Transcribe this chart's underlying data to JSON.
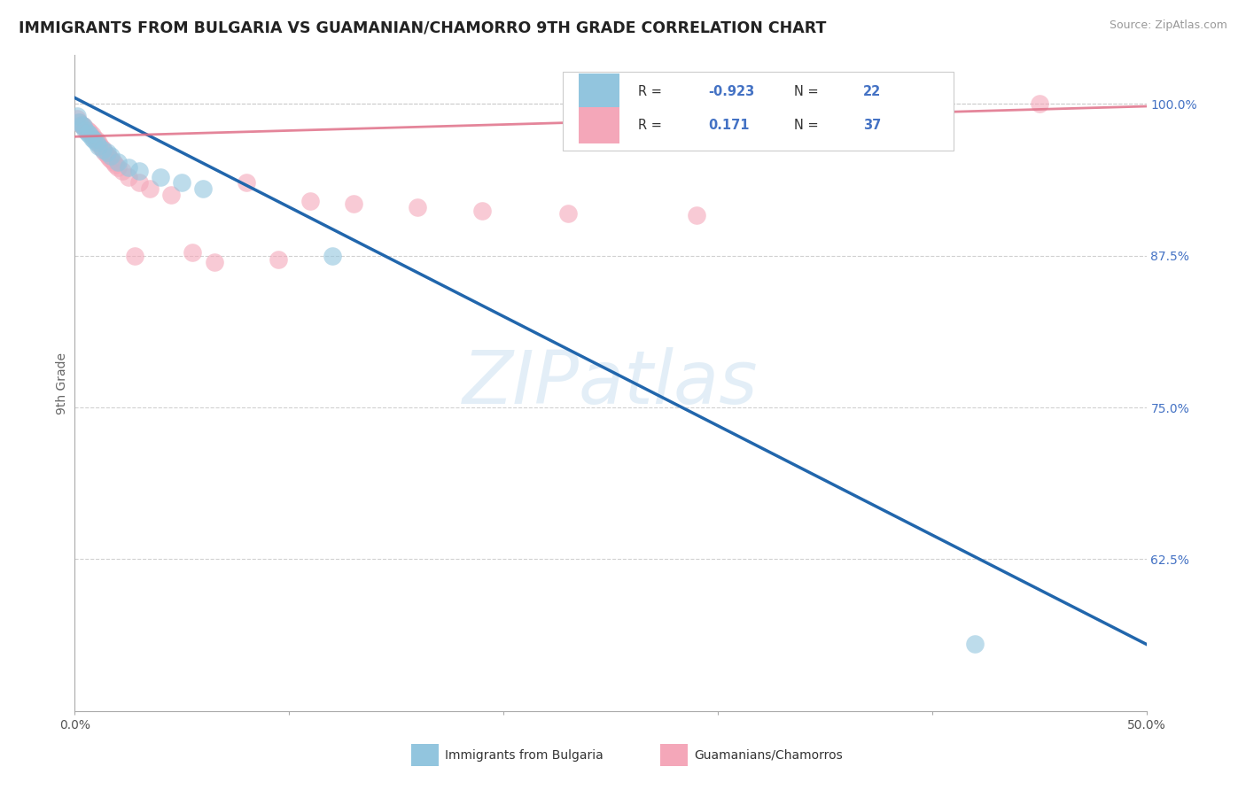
{
  "title": "IMMIGRANTS FROM BULGARIA VS GUAMANIAN/CHAMORRO 9TH GRADE CORRELATION CHART",
  "source": "Source: ZipAtlas.com",
  "ylabel": "9th Grade",
  "xlim": [
    0.0,
    0.5
  ],
  "ylim": [
    0.5,
    1.04
  ],
  "legend_blue_r": "-0.923",
  "legend_blue_n": "22",
  "legend_pink_r": "0.171",
  "legend_pink_n": "37",
  "legend_label_blue": "Immigrants from Bulgaria",
  "legend_label_pink": "Guamanians/Chamorros",
  "blue_color": "#92c5de",
  "pink_color": "#f4a7b9",
  "blue_line_color": "#2166ac",
  "pink_line_color": "#e07088",
  "r_n_color": "#4472c4",
  "watermark": "ZIPatlas",
  "blue_x": [
    0.001,
    0.002,
    0.003,
    0.004,
    0.005,
    0.006,
    0.007,
    0.008,
    0.009,
    0.01,
    0.011,
    0.013,
    0.015,
    0.017,
    0.02,
    0.025,
    0.03,
    0.04,
    0.05,
    0.06,
    0.12,
    0.42
  ],
  "blue_y": [
    0.99,
    0.985,
    0.983,
    0.982,
    0.978,
    0.976,
    0.975,
    0.972,
    0.97,
    0.968,
    0.965,
    0.962,
    0.96,
    0.957,
    0.952,
    0.948,
    0.945,
    0.94,
    0.935,
    0.93,
    0.875,
    0.555
  ],
  "pink_x": [
    0.001,
    0.002,
    0.003,
    0.004,
    0.005,
    0.006,
    0.007,
    0.008,
    0.009,
    0.01,
    0.011,
    0.012,
    0.013,
    0.014,
    0.015,
    0.016,
    0.017,
    0.018,
    0.019,
    0.02,
    0.022,
    0.025,
    0.028,
    0.03,
    0.035,
    0.045,
    0.055,
    0.065,
    0.08,
    0.095,
    0.11,
    0.13,
    0.16,
    0.19,
    0.23,
    0.29,
    0.45
  ],
  "pink_y": [
    0.988,
    0.985,
    0.983,
    0.982,
    0.98,
    0.978,
    0.977,
    0.975,
    0.972,
    0.97,
    0.968,
    0.965,
    0.963,
    0.96,
    0.958,
    0.956,
    0.954,
    0.952,
    0.95,
    0.948,
    0.945,
    0.94,
    0.875,
    0.935,
    0.93,
    0.925,
    0.878,
    0.87,
    0.935,
    0.872,
    0.92,
    0.918,
    0.915,
    0.912,
    0.91,
    0.908,
    1.0
  ],
  "blue_line_x0": 0.0,
  "blue_line_y0": 1.005,
  "blue_line_x1": 0.5,
  "blue_line_y1": 0.555,
  "pink_line_x0": 0.0,
  "pink_line_y0": 0.973,
  "pink_line_x1": 0.5,
  "pink_line_y1": 0.998
}
